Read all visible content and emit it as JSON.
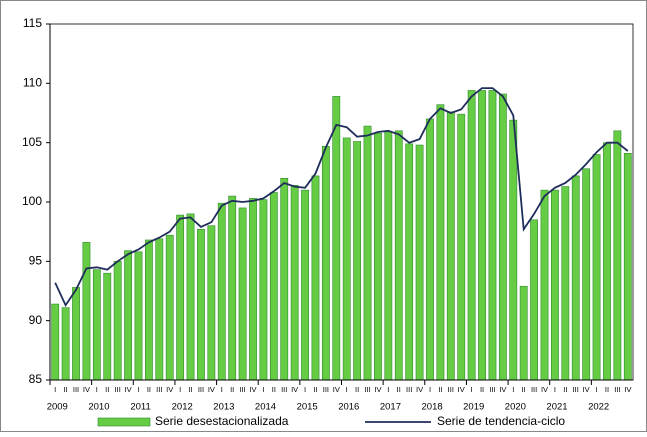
{
  "chart_data": {
    "type": "bar-line",
    "categories": [
      "I",
      "II",
      "III",
      "IV",
      "I",
      "II",
      "III",
      "IV",
      "I",
      "II",
      "III",
      "IV",
      "I",
      "II",
      "III",
      "IV",
      "I",
      "II",
      "III",
      "IV",
      "I",
      "II",
      "III",
      "IV",
      "I",
      "II",
      "III",
      "IV",
      "I",
      "II",
      "III",
      "IV",
      "I",
      "II",
      "III",
      "IV",
      "I",
      "II",
      "III",
      "IV",
      "I",
      "II",
      "III",
      "IV",
      "I",
      "II",
      "III",
      "IV",
      "I",
      "II",
      "III",
      "IV",
      "I",
      "II",
      "III",
      "IV"
    ],
    "year_labels": [
      "2009",
      "2010",
      "2011",
      "2012",
      "2013",
      "2014",
      "2015",
      "2016",
      "2017",
      "2018",
      "2019",
      "2020",
      "2021",
      "2022"
    ],
    "series": [
      {
        "name": "Serie desestacionalizada",
        "type": "bar",
        "color": "#66cc44",
        "values": [
          91.4,
          91.1,
          92.8,
          96.6,
          94.3,
          94.0,
          95.0,
          95.9,
          95.8,
          96.8,
          96.9,
          97.2,
          98.9,
          99.0,
          97.7,
          98.0,
          99.9,
          100.5,
          99.5,
          100.3,
          100.2,
          100.8,
          102.0,
          101.4,
          101.0,
          102.2,
          104.7,
          108.9,
          105.4,
          105.1,
          106.4,
          105.8,
          105.9,
          106.0,
          104.9,
          104.8,
          107.0,
          108.2,
          107.6,
          107.4,
          109.4,
          109.4,
          109.4,
          109.1,
          106.9,
          92.9,
          98.5,
          101.0,
          101.0,
          101.3,
          102.2,
          102.8,
          104.0,
          105.0,
          106.0,
          104.1
        ]
      },
      {
        "name": "Serie de tendencia-ciclo",
        "type": "line",
        "color": "#1f2d5a",
        "values": [
          93.2,
          91.3,
          92.6,
          94.4,
          94.5,
          94.3,
          95.0,
          95.6,
          96.0,
          96.6,
          97.0,
          97.5,
          98.6,
          98.7,
          97.9,
          98.3,
          99.7,
          100.1,
          100.0,
          100.1,
          100.3,
          100.9,
          101.6,
          101.3,
          101.2,
          102.4,
          104.6,
          106.5,
          106.3,
          105.5,
          105.6,
          105.9,
          106.0,
          105.7,
          105.0,
          105.3,
          107.0,
          107.9,
          107.5,
          107.8,
          108.9,
          109.6,
          109.6,
          108.9,
          107.3,
          97.7,
          99.0,
          100.5,
          101.2,
          101.6,
          102.3,
          103.2,
          104.2,
          105.0,
          105.0,
          104.3
        ]
      }
    ],
    "ylim": [
      85,
      115
    ],
    "yticks": [
      85,
      90,
      95,
      100,
      105,
      110,
      115
    ],
    "grid": false,
    "legend": "bottom"
  }
}
